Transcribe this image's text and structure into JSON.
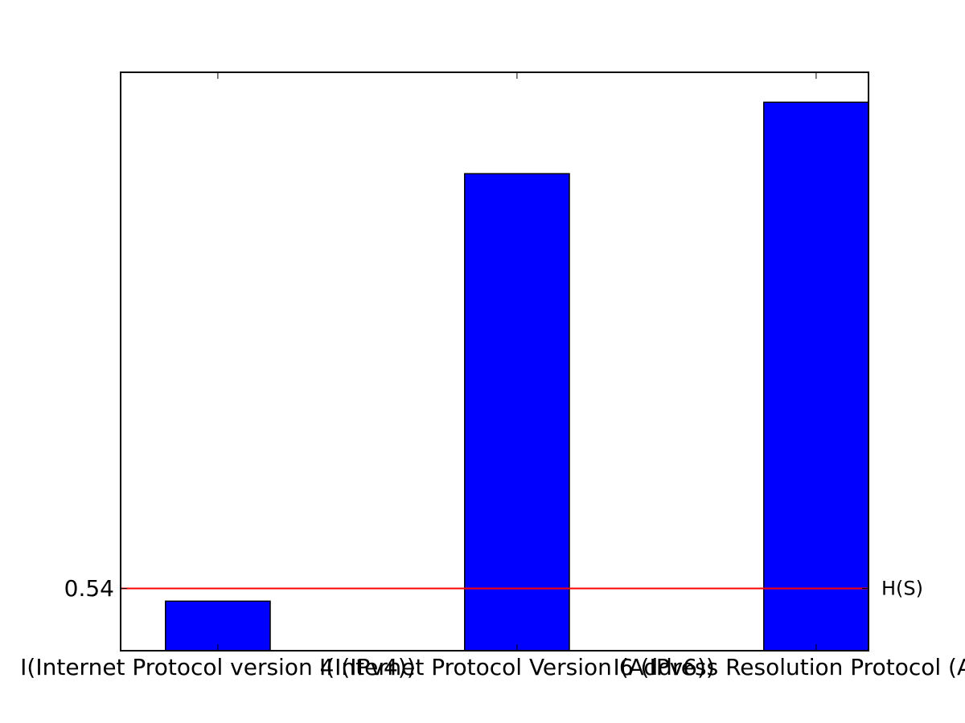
{
  "chart_data": {
    "type": "bar",
    "categories": [
      "I(Internet Protocol version 4 (IPv4))",
      "I(Internet Protocol Version 6 (IPv6))",
      "I(Address Resolution Protocol (ARP))"
    ],
    "values": [
      0.43,
      4.14,
      4.76
    ],
    "ylim": [
      0.0,
      5.02
    ],
    "y_ticks": [
      {
        "value": 0.54,
        "label": "0.54"
      }
    ],
    "reference_line": {
      "value": 0.54,
      "label": "H(S)",
      "color": "#ff0000"
    },
    "bar_color": "#0000ff",
    "bar_edge_color": "#000000",
    "grid": false,
    "legend": "none"
  }
}
